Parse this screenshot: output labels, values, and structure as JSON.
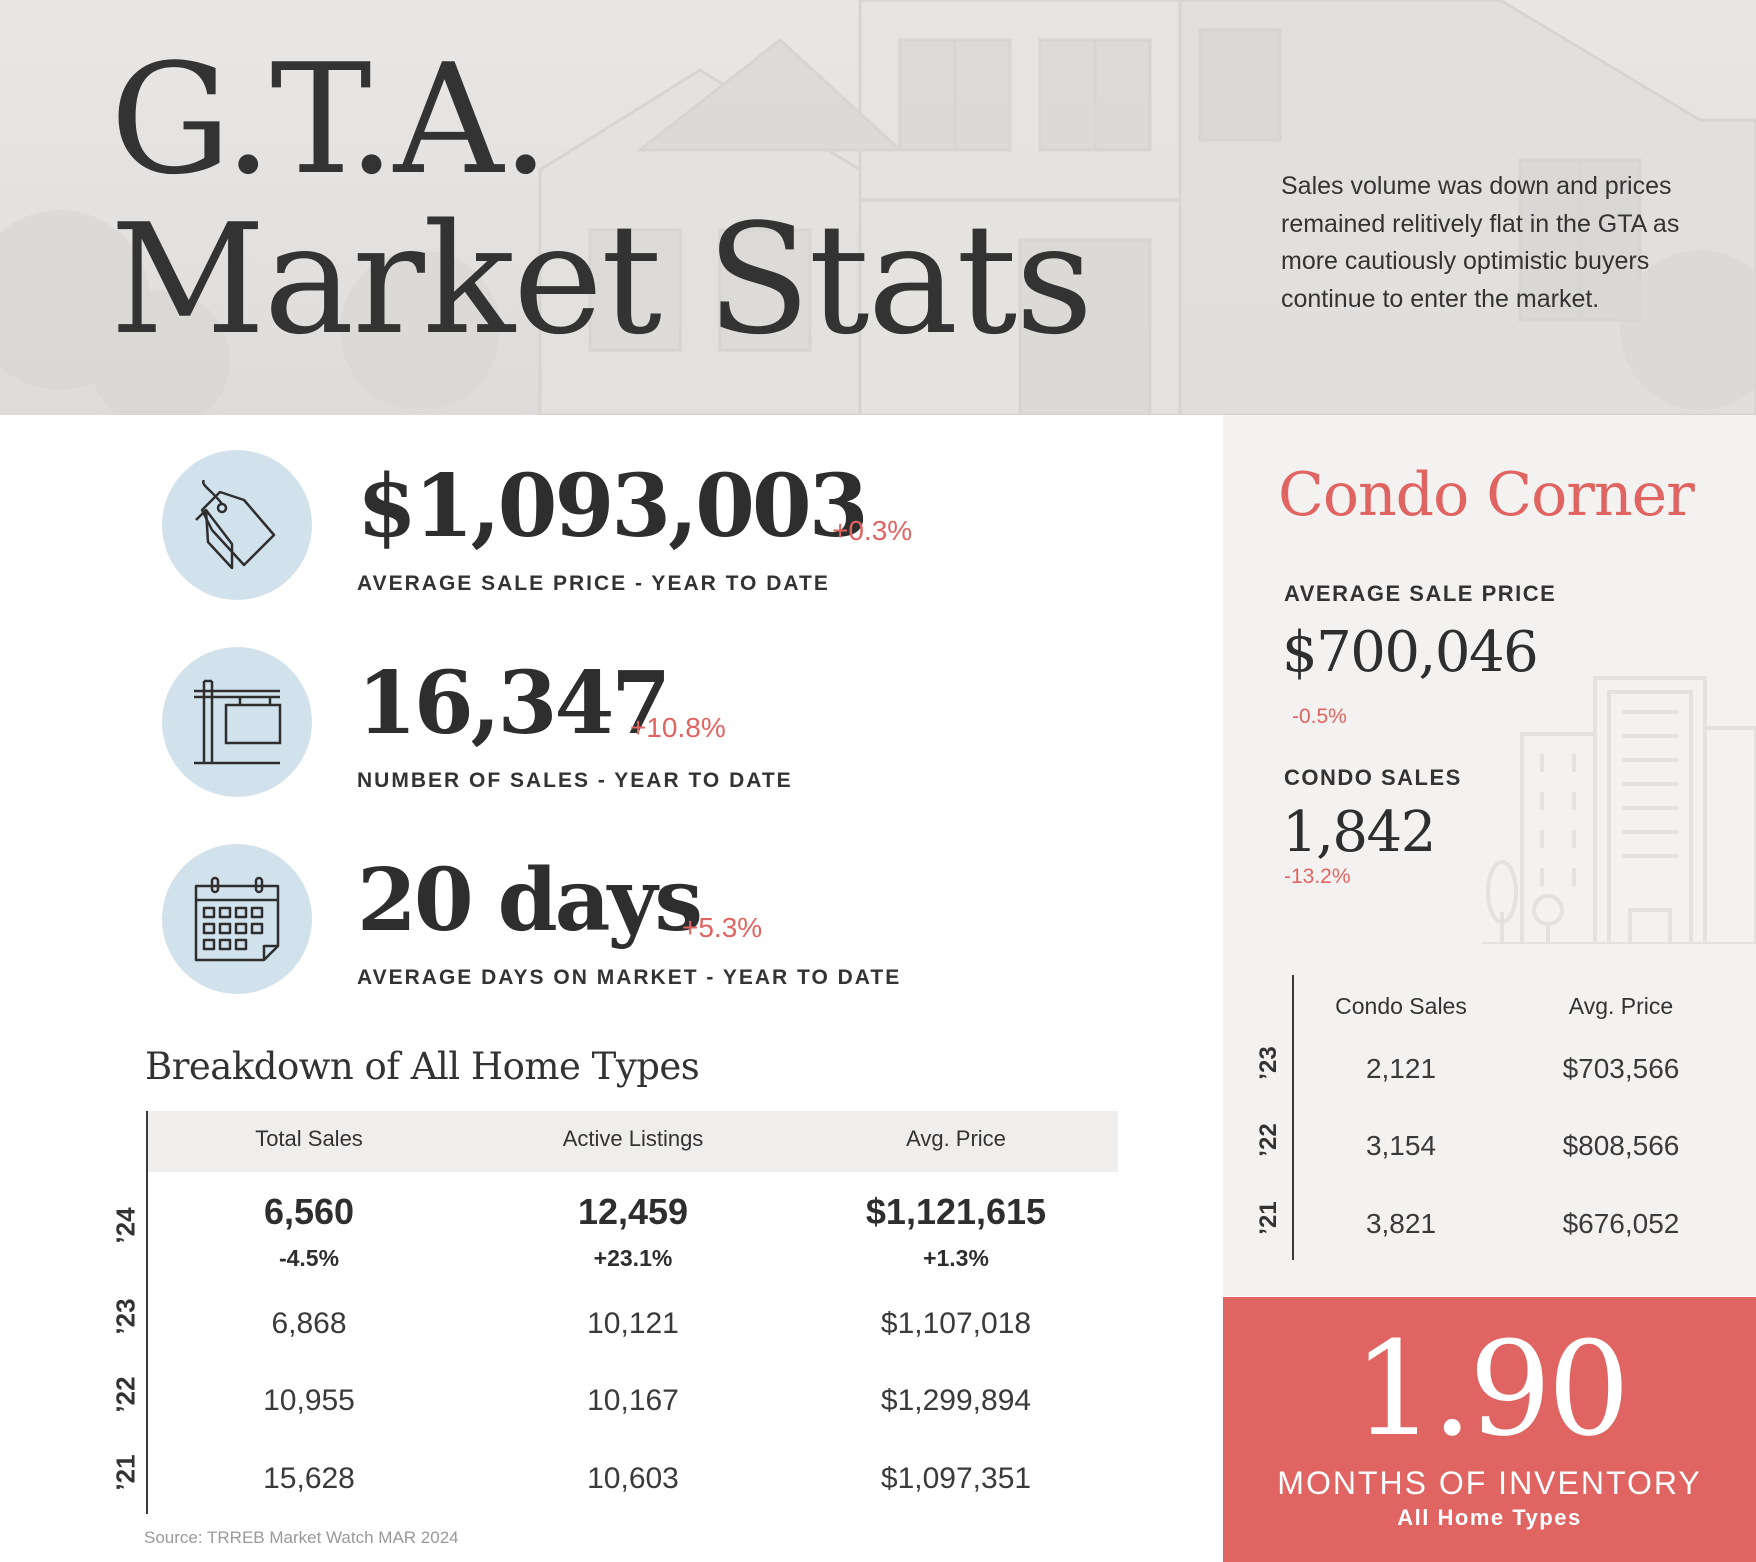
{
  "header": {
    "title_line1": "G.T.A.",
    "title_line2": "Market Stats",
    "intro": "Sales volume was down and prices remained relitively flat in the GTA as more cautiously optimistic buyers continue to enter the market."
  },
  "stats": [
    {
      "icon": "price-tag-icon",
      "value": "$1,093,003",
      "change": "+0.3%",
      "label": "AVERAGE SALE PRICE - YEAR TO DATE"
    },
    {
      "icon": "sale-sign-icon",
      "value": "16,347",
      "change": "+10.8%",
      "label": "NUMBER OF SALES - YEAR TO DATE"
    },
    {
      "icon": "calendar-icon",
      "value": "20 days",
      "change": "+5.3%",
      "label": "AVERAGE DAYS ON MARKET - YEAR TO DATE"
    }
  ],
  "breakdown": {
    "title": "Breakdown of All Home Types",
    "headers": [
      "Total Sales",
      "Active Listings",
      "Avg. Price"
    ],
    "current": {
      "year": "’24",
      "values": [
        "6,560",
        "12,459",
        "$1,121,615"
      ],
      "changes": [
        "-4.5%",
        "+23.1%",
        "+1.3%"
      ]
    },
    "rows": [
      {
        "year": "’23",
        "values": [
          "6,868",
          "10,121",
          "$1,107,018"
        ]
      },
      {
        "year": "’22",
        "values": [
          "10,955",
          "10,167",
          "$1,299,894"
        ]
      },
      {
        "year": "’21",
        "values": [
          "15,628",
          "10,603",
          "$1,097,351"
        ]
      }
    ],
    "source": "Source: TRREB Market Watch MAR 2024"
  },
  "condo": {
    "title": "Condo Corner",
    "price_label": "AVERAGE SALE PRICE",
    "price_value": "$700,046",
    "price_change": "-0.5%",
    "sales_label": "CONDO SALES",
    "sales_value": "1,842",
    "sales_change": "-13.2%",
    "headers": [
      "Condo Sales",
      "Avg. Price"
    ],
    "rows": [
      {
        "year": "’23",
        "values": [
          "2,121",
          "$703,566"
        ]
      },
      {
        "year": "’22",
        "values": [
          "3,154",
          "$808,566"
        ]
      },
      {
        "year": "’21",
        "values": [
          "3,821",
          "$676,052"
        ]
      }
    ]
  },
  "inventory": {
    "value": "1.90",
    "label": "MONTHS OF INVENTORY",
    "sublabel": "All Home Types"
  },
  "colors": {
    "accent": "#e06461",
    "icon_circle": "#d2e2ec",
    "panel": "#f3f2f1",
    "text": "#2e2e2e"
  }
}
